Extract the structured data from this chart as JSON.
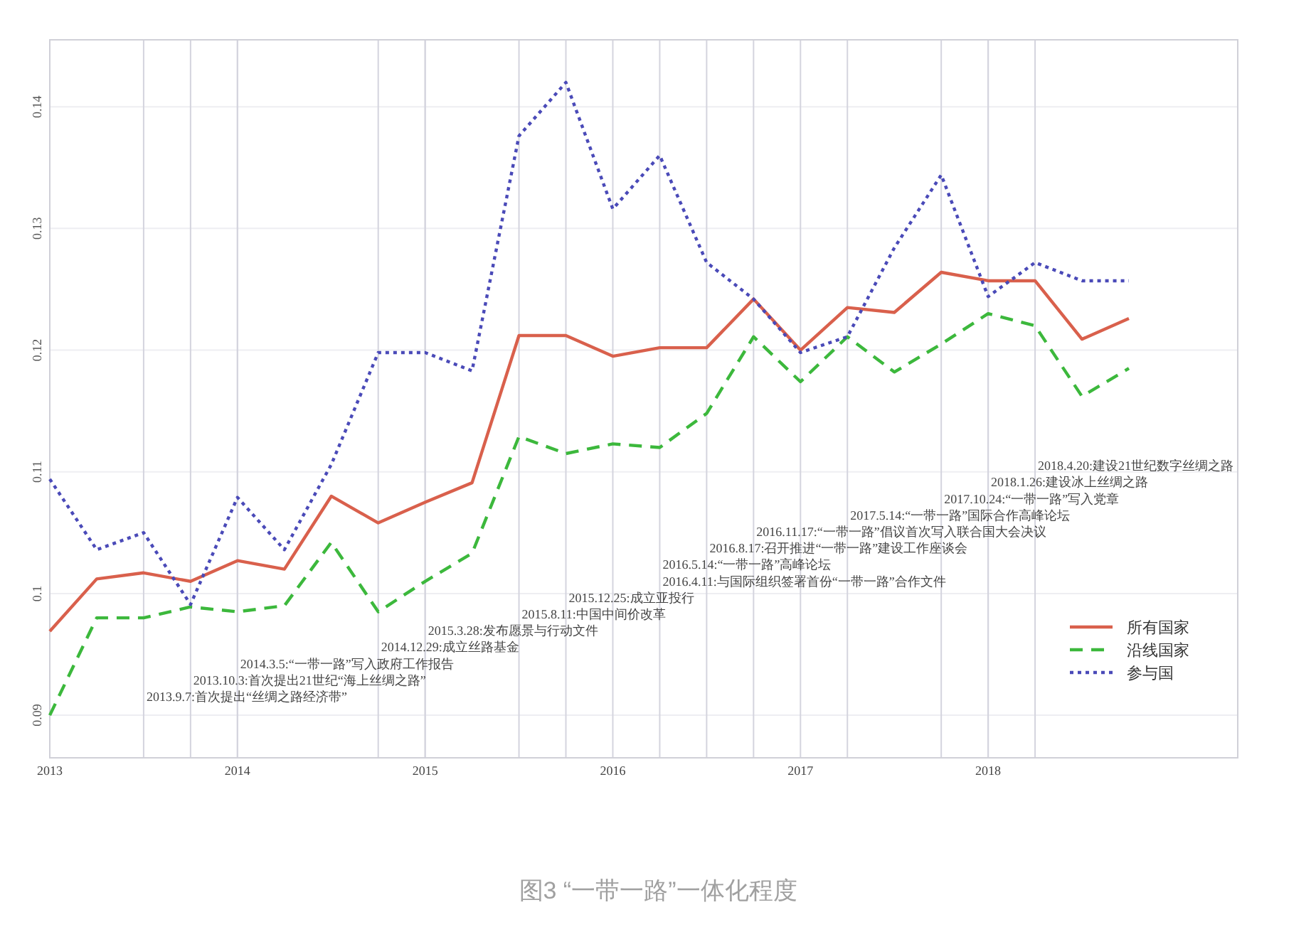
{
  "chart_data": {
    "type": "line",
    "x": [
      2013,
      2013.25,
      2013.5,
      2013.75,
      2014,
      2014.25,
      2014.5,
      2014.75,
      2015,
      2015.25,
      2015.5,
      2015.75,
      2016,
      2016.25,
      2016.5,
      2016.75,
      2017,
      2017.25,
      2017.5,
      2017.75,
      2018,
      2018.25,
      2018.5,
      2018.75
    ],
    "series": [
      {
        "name": "所有国家",
        "color": "#d9604c",
        "line_style": "solid",
        "values": [
          0.0969,
          0.1012,
          0.1017,
          0.101,
          0.1027,
          0.102,
          0.108,
          0.1058,
          0.1075,
          0.1091,
          0.1212,
          0.1212,
          0.1195,
          0.1202,
          0.1202,
          0.1242,
          0.12,
          0.1235,
          0.1231,
          0.1264,
          0.1257,
          0.1257,
          0.1209,
          0.1226
        ]
      },
      {
        "name": "沿线国家",
        "color": "#3cb83c",
        "line_style": "dashed",
        "values": [
          0.09,
          0.098,
          0.098,
          0.0989,
          0.0985,
          0.099,
          0.1042,
          0.0985,
          0.101,
          0.1033,
          0.1129,
          0.1115,
          0.1123,
          0.112,
          0.1148,
          0.1211,
          0.1174,
          0.1211,
          0.1182,
          0.1205,
          0.123,
          0.122,
          0.1162,
          0.1185
        ]
      },
      {
        "name": "参与国",
        "color": "#4a4ab8",
        "line_style": "dotted",
        "values": [
          0.1094,
          0.1036,
          0.105,
          0.0991,
          0.1079,
          0.1036,
          0.1106,
          0.1198,
          0.1198,
          0.1183,
          0.1376,
          0.142,
          0.1316,
          0.136,
          0.1272,
          0.1242,
          0.1198,
          0.1211,
          0.1284,
          0.1344,
          0.1244,
          0.1272,
          0.1257,
          0.1257
        ]
      }
    ],
    "xlim": [
      2013,
      2019.33
    ],
    "xticks": [
      2013,
      2014,
      2015,
      2016,
      2017,
      2018
    ],
    "ylim": [
      0.0865,
      0.1455
    ],
    "yticks": [
      0.09,
      0.1,
      0.11,
      0.12,
      0.13,
      0.14
    ],
    "grid": true,
    "legend": "bottom right",
    "ref_lines": [
      {
        "axis": "x",
        "value": 2013.5,
        "label": "2013.9.7:首次提出“丝绸之路经济带”"
      },
      {
        "axis": "x",
        "value": 2013.75,
        "label": "2013.10.3:首次提出21世纪“海上丝绸之路”"
      },
      {
        "axis": "x",
        "value": 2014,
        "label": "2014.3.5:“一带一路”写入政府工作报告"
      },
      {
        "axis": "x",
        "value": 2014.75,
        "label": "2014.12.29:成立丝路基金"
      },
      {
        "axis": "x",
        "value": 2015,
        "label": "2015.3.28:发布愿景与行动文件"
      },
      {
        "axis": "x",
        "value": 2015.5,
        "label": "2015.8.11:中国中间价改革"
      },
      {
        "axis": "x",
        "value": 2015.75,
        "label": "2015.12.25:成立亚投行"
      },
      {
        "axis": "x",
        "value": 2016.25,
        "label": "2016.5.14:“一带一路”高峰论坛"
      },
      {
        "axis": "x",
        "value": 2016.5,
        "label": "2016.8.17:召开推进“一带一路”建设工作座谈会"
      },
      {
        "axis": "x",
        "value": 2016.75,
        "label": "2016.11.17:“一带一路”倡议首次写入联合国大会决议"
      },
      {
        "axis": "x",
        "value": 2017.25,
        "label": "2017.5.14:“一带一路”国际合作高峰论坛"
      },
      {
        "axis": "x",
        "value": 2017.75,
        "label": "2017.10.24:“一带一路”写入党章"
      },
      {
        "axis": "x",
        "value": 2018,
        "label": "2018.1.26:建设冰上丝绸之路"
      },
      {
        "axis": "x",
        "value": 2018.25,
        "label": "2018.4.20:建设21世纪数字丝绸之路"
      }
    ],
    "annotations": [
      {
        "text": "2016.4.11:与国际组织签署首份“一带一路”合作文件",
        "x": 2016.25
      },
      "图3 “一带一路”一体化程度"
    ]
  }
}
